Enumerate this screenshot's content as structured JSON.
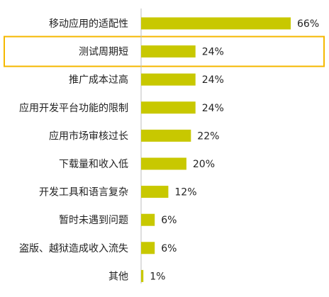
{
  "chart_data": {
    "type": "bar",
    "orientation": "horizontal",
    "categories": [
      "移动应用的适配性",
      "测试周期短",
      "推广成本过高",
      "应用开发平台功能的限制",
      "应用市场审核过长",
      "下载量和收入低",
      "开发工具和语言复杂",
      "暂时未遇到问题",
      "盗版、越狱造成收入流失",
      "其他"
    ],
    "values": [
      66,
      24,
      24,
      24,
      22,
      20,
      12,
      6,
      6,
      1
    ],
    "value_labels": [
      "66%",
      "24%",
      "24%",
      "24%",
      "22%",
      "20%",
      "12%",
      "6%",
      "6%",
      "1%"
    ],
    "xlim": [
      0,
      70
    ],
    "grid": false,
    "highlighted_category": "测试周期短",
    "colors": {
      "bar": "#c8c800",
      "highlight_border": "#f5b800",
      "axis": "#bdbdbd",
      "text": "#222222"
    }
  }
}
